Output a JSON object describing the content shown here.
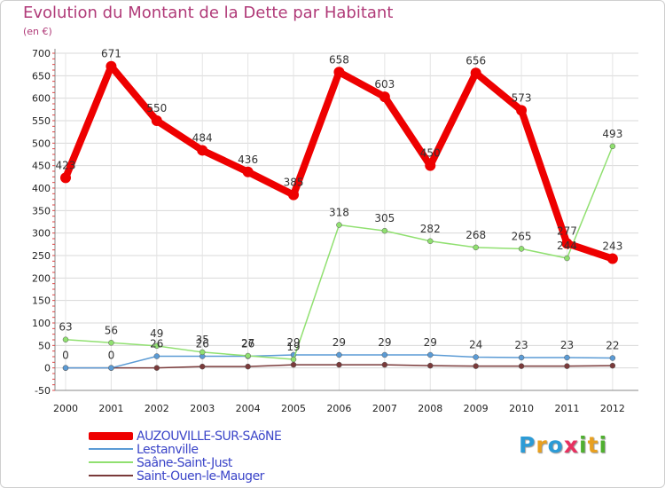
{
  "chart_data": {
    "type": "line",
    "title": "Evolution du Montant de la Dette par Habitant",
    "subtitle": "(en €)",
    "xlabel": "",
    "ylabel": "",
    "ylim": [
      -50,
      700
    ],
    "yticks": [
      -50,
      0,
      50,
      100,
      150,
      200,
      250,
      300,
      350,
      400,
      450,
      500,
      550,
      600,
      650,
      700
    ],
    "x": [
      "2000",
      "2001",
      "2002",
      "2003",
      "2004",
      "2005",
      "2006",
      "2007",
      "2008",
      "2009",
      "2010",
      "2011",
      "2012"
    ],
    "series": [
      {
        "name": "AUZOUVILLE-SUR-SAöNE",
        "color": "#ee0000",
        "style": "thick",
        "values": [
          423,
          671,
          550,
          484,
          436,
          385,
          658,
          603,
          450,
          656,
          573,
          277,
          243
        ],
        "labels": [
          "423",
          "671",
          "550",
          "484",
          "436",
          "385",
          "658",
          "603",
          "450",
          "656",
          "573",
          "277",
          "243"
        ]
      },
      {
        "name": "Lestanville",
        "color": "#5b9bd5",
        "style": "thin",
        "values": [
          0,
          0,
          26,
          26,
          26,
          29,
          29,
          29,
          29,
          24,
          23,
          23,
          22
        ],
        "labels": [
          "0",
          "0",
          "26",
          "26",
          "26",
          "29",
          "29",
          "29",
          "29",
          "24",
          "23",
          "23",
          "22"
        ]
      },
      {
        "name": "Saâne-Saint-Just",
        "color": "#90e070",
        "style": "thin",
        "values": [
          63,
          56,
          49,
          35,
          27,
          19,
          318,
          305,
          282,
          268,
          265,
          244,
          493
        ],
        "labels": [
          "63",
          "56",
          "49",
          "35",
          "27",
          "19",
          "318",
          "305",
          "282",
          "268",
          "265",
          "244",
          "493"
        ]
      },
      {
        "name": "Saint-Ouen-le-Mauger",
        "color": "#7a3a3a",
        "style": "thin",
        "values": [
          0,
          0,
          0,
          3,
          3,
          7,
          7,
          7,
          5,
          4,
          4,
          4,
          5
        ],
        "labels": []
      }
    ]
  },
  "legend": [
    {
      "label": "AUZOUVILLE-SUR-SAöNE",
      "color": "#ee0000"
    },
    {
      "label": "Lestanville",
      "color": "#5b9bd5"
    },
    {
      "label": "Saâne-Saint-Just",
      "color": "#90e070"
    },
    {
      "label": "Saint-Ouen-le-Mauger",
      "color": "#7a3a3a"
    }
  ],
  "logo": {
    "text": "Proxiti",
    "letters": [
      "P",
      "r",
      "o",
      "x",
      "i",
      "t",
      "i"
    ],
    "colors": [
      "#2c9bd6",
      "#e8a020",
      "#2c9bd6",
      "#e83060",
      "#50b030",
      "#e8a020",
      "#50b030"
    ]
  }
}
